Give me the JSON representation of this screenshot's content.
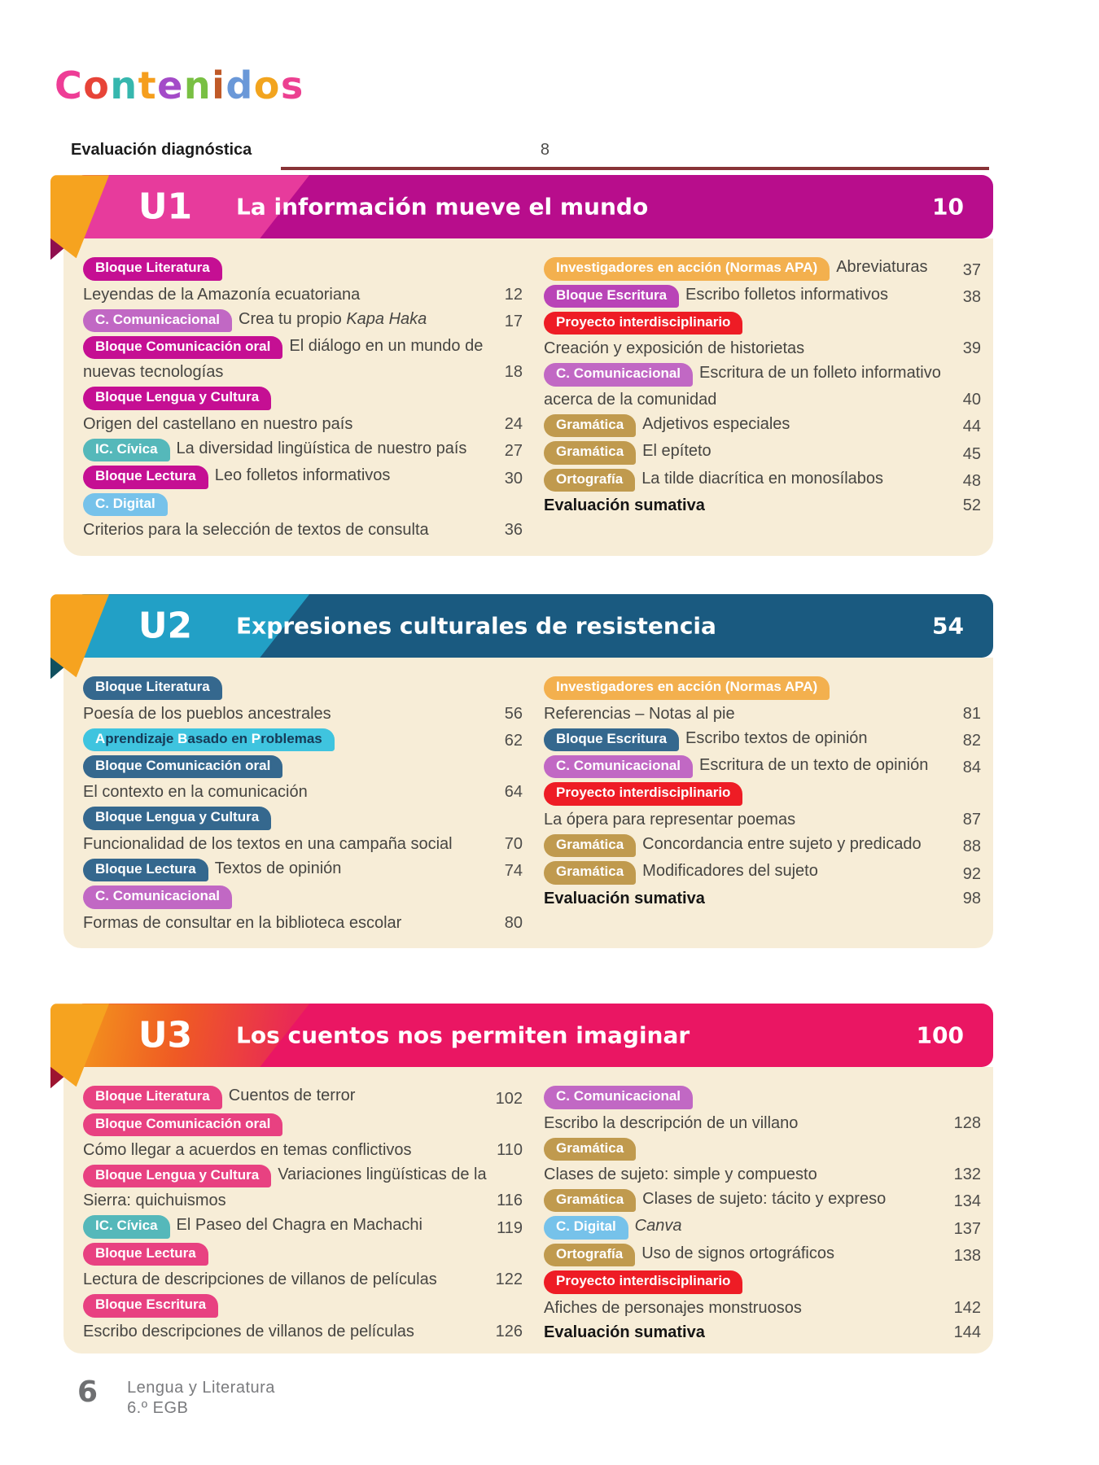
{
  "page_title": "Contenidos",
  "page_title_letters": [
    {
      "ch": "C",
      "color": "#ee3d96"
    },
    {
      "ch": "o",
      "color": "#e74438"
    },
    {
      "ch": "n",
      "color": "#36b7ae"
    },
    {
      "ch": "t",
      "color": "#f59e1d"
    },
    {
      "ch": "e",
      "color": "#a44bc8"
    },
    {
      "ch": "n",
      "color": "#79c043"
    },
    {
      "ch": "i",
      "color": "#c05a28"
    },
    {
      "ch": "d",
      "color": "#6a98d8"
    },
    {
      "ch": "o",
      "color": "#f2a41e"
    },
    {
      "ch": "s",
      "color": "#ec4091"
    }
  ],
  "pretoc": {
    "label": "Evaluación diagnóstica",
    "page": "8"
  },
  "divider_color": "#7b1d20",
  "units": [
    {
      "code": "U1",
      "title": "La información mueve el mundo",
      "page": "10",
      "colors": {
        "bar": "#b80d8c",
        "tab_css": "#e73b9c",
        "accent": "#f6a31f",
        "fold": "#8f0e4e"
      },
      "left": [
        {
          "badge": {
            "label": "Bloque Literatura",
            "bg": "#c50f93"
          }
        },
        {
          "text": "Leyendas de la Amazonía ecuatoriana",
          "page": "12"
        },
        {
          "badge": {
            "label": "C. Comunicacional",
            "bg": "#c168c4"
          },
          "text_parts": [
            {
              "t": "Crea tu propio ",
              "i": false
            },
            {
              "t": "Kapa Haka",
              "i": true
            }
          ],
          "page": "17"
        },
        {
          "badge": {
            "label": "Bloque Comunicación oral",
            "bg": "#c50f93"
          },
          "text": "El diálogo en un mundo de nuevas tecnologías",
          "page": "18"
        },
        {
          "badge": {
            "label": "Bloque Lengua y Cultura",
            "bg": "#c50f93"
          }
        },
        {
          "text": "Origen del castellano en nuestro país",
          "page": "24"
        },
        {
          "badge": {
            "label": "IC. Cívica",
            "bg": "#55b8ba"
          },
          "text": "La diversidad lingüística de nuestro país",
          "page": "27"
        },
        {
          "badge": {
            "label": "Bloque Lectura",
            "bg": "#c50f93"
          },
          "text": "Leo folletos informativos",
          "page": "30"
        },
        {
          "badge": {
            "label": "C. Digital",
            "bg": "#76c2ea"
          }
        },
        {
          "text": "Criterios para la selección de textos de consulta",
          "page": "36"
        }
      ],
      "right": [
        {
          "badge": {
            "label": "Investigadores en acción (Normas APA)",
            "bg": "#f3b04e"
          },
          "text": "Abreviaturas",
          "page": "37"
        },
        {
          "badge": {
            "label": "Bloque Escritura",
            "bg": "#b944b7"
          },
          "text": "Escribo folletos informativos",
          "page": "38"
        },
        {
          "badge": {
            "label": "Proyecto interdisciplinario",
            "bg": "#ee1c25"
          }
        },
        {
          "text": "Creación y exposición de historietas",
          "page": "39"
        },
        {
          "badge": {
            "label": "C. Comunicacional",
            "bg": "#c168c4"
          },
          "text": "Escritura de un folleto informativo acerca de la comunidad",
          "page": "40"
        },
        {
          "badge": {
            "label": "Gramática",
            "bg": "#c09a4e"
          },
          "text": "Adjetivos especiales",
          "page": "44"
        },
        {
          "badge": {
            "label": "Gramática",
            "bg": "#c09a4e"
          },
          "text": "El epíteto",
          "page": "45"
        },
        {
          "badge": {
            "label": "Ortografía",
            "bg": "#c09a4e"
          },
          "text": "La tilde diacrítica en monosílabos",
          "page": "48"
        },
        {
          "text": "Evaluación sumativa",
          "bold": true,
          "page": "52"
        }
      ]
    },
    {
      "code": "U2",
      "title": "Expresiones culturales de resistencia",
      "page": "54",
      "colors": {
        "bar": "#1a5a80",
        "tab_css": "#22a0c6",
        "accent": "#f6a31f",
        "fold": "#10505f"
      },
      "left": [
        {
          "badge": {
            "label": "Bloque Literatura",
            "bg": "#35688e"
          }
        },
        {
          "text": "Poesía de los pueblos ancestrales",
          "page": "56"
        },
        {
          "badge": {
            "bg": "#3fc4df",
            "fg": "#173a57",
            "parts": [
              {
                "t": "A",
                "c": "#ffffff"
              },
              {
                "t": "prendizaje ",
                "c": "#173a57"
              },
              {
                "t": "B",
                "c": "#ffffff"
              },
              {
                "t": "asado en ",
                "c": "#173a57"
              },
              {
                "t": "P",
                "c": "#ffffff"
              },
              {
                "t": "roblemas",
                "c": "#173a57"
              }
            ]
          },
          "page": "62"
        },
        {
          "badge": {
            "label": "Bloque Comunicación oral",
            "bg": "#35688e"
          }
        },
        {
          "text": "El contexto en la comunicación",
          "page": "64"
        },
        {
          "badge": {
            "label": "Bloque Lengua y Cultura",
            "bg": "#35688e"
          }
        },
        {
          "text": "Funcionalidad de los textos en una campaña social",
          "page": "70"
        },
        {
          "badge": {
            "label": "Bloque Lectura",
            "bg": "#35688e"
          },
          "text": "Textos de opinión",
          "page": "74"
        },
        {
          "badge": {
            "label": "C. Comunicacional",
            "bg": "#c168c4"
          }
        },
        {
          "text": "Formas de consultar en la biblioteca escolar",
          "page": "80"
        }
      ],
      "right": [
        {
          "badge": {
            "label": "Investigadores en acción (Normas APA)",
            "bg": "#f3b04e"
          }
        },
        {
          "text": "Referencias – Notas al pie",
          "page": "81"
        },
        {
          "badge": {
            "label": "Bloque Escritura",
            "bg": "#35688e"
          },
          "text": "Escribo textos de opinión",
          "page": "82"
        },
        {
          "badge": {
            "label": "C. Comunicacional",
            "bg": "#c168c4"
          },
          "text": "Escritura de un texto de opinión",
          "page": "84"
        },
        {
          "badge": {
            "label": "Proyecto interdisciplinario",
            "bg": "#ee1c25"
          }
        },
        {
          "text": "La ópera para representar poemas",
          "page": "87"
        },
        {
          "badge": {
            "label": "Gramática",
            "bg": "#c09a4e"
          },
          "text": "Concordancia entre sujeto y predicado",
          "page": "88"
        },
        {
          "badge": {
            "label": "Gramática",
            "bg": "#c09a4e"
          },
          "text": "Modificadores del sujeto",
          "page": "92"
        },
        {
          "text": "Evaluación sumativa",
          "bold": true,
          "page": "98"
        }
      ]
    },
    {
      "code": "U3",
      "title": "Los cuentos nos permiten imaginar",
      "page": "100",
      "colors": {
        "bar": "#ea1663",
        "tab_css": "linear-gradient(100deg,#f49a1c 0%,#ef5a24 45%,#e92a55 90%)",
        "accent": "#f6a31f",
        "fold": "#9d1430"
      },
      "left": [
        {
          "badge": {
            "label": "Bloque Literatura",
            "bg": "#e84181"
          },
          "text": "Cuentos de terror",
          "page": "102"
        },
        {
          "badge": {
            "label": "Bloque Comunicación oral",
            "bg": "#e84181"
          }
        },
        {
          "text": "Cómo llegar a acuerdos en temas conflictivos",
          "page": "110"
        },
        {
          "badge": {
            "label": "Bloque Lengua y Cultura",
            "bg": "#e84181"
          },
          "text": "Variaciones lingüísticas de la Sierra: quichuismos",
          "page": "116"
        },
        {
          "badge": {
            "label": "IC. Cívica",
            "bg": "#55b8ba"
          },
          "text": "El Paseo del Chagra en Machachi",
          "page": "119"
        },
        {
          "badge": {
            "label": "Bloque Lectura",
            "bg": "#e84181"
          }
        },
        {
          "text": "Lectura de descripciones de villanos de películas",
          "page": "122"
        },
        {
          "badge": {
            "label": "Bloque Escritura",
            "bg": "#e84181"
          }
        },
        {
          "text": "Escribo descripciones de villanos de películas",
          "page": "126"
        }
      ],
      "right": [
        {
          "badge": {
            "label": "C. Comunicacional",
            "bg": "#c168c4"
          }
        },
        {
          "text": "Escribo la descripción de un villano",
          "page": "128"
        },
        {
          "badge": {
            "label": "Gramática",
            "bg": "#c09a4e"
          }
        },
        {
          "text": "Clases de sujeto: simple y compuesto",
          "page": "132"
        },
        {
          "badge": {
            "label": "Gramática",
            "bg": "#c09a4e"
          },
          "text": "Clases de sujeto: tácito y expreso",
          "page": "134"
        },
        {
          "badge": {
            "label": "C. Digital",
            "bg": "#76c2ea"
          },
          "text_parts": [
            {
              "t": "Canva",
              "i": true
            }
          ],
          "page": "137"
        },
        {
          "badge": {
            "label": "Ortografía",
            "bg": "#c09a4e"
          },
          "text": "Uso de signos ortográficos",
          "page": "138"
        },
        {
          "badge": {
            "label": "Proyecto interdisciplinario",
            "bg": "#ee1c25"
          }
        },
        {
          "text": "Afiches de personajes monstruosos",
          "page": "142"
        },
        {
          "text": "Evaluación sumativa",
          "bold": true,
          "page": "144"
        }
      ]
    }
  ],
  "footer": {
    "page_number": "6",
    "book": "Lengua y Literatura",
    "grade": "6.º EGB"
  }
}
